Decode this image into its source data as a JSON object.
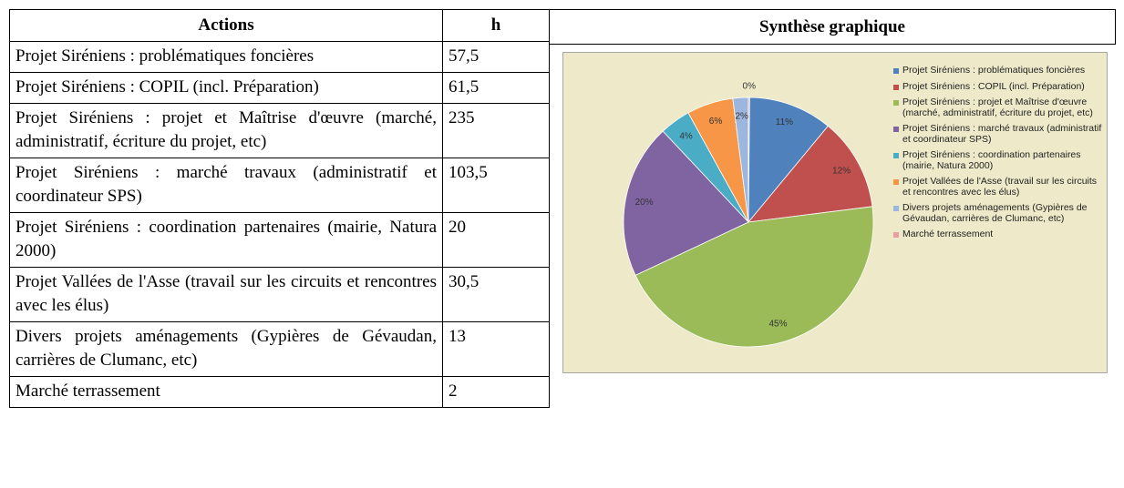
{
  "header": {
    "columns": [
      "Actions",
      "h",
      "Synthèse graphique"
    ]
  },
  "table": {
    "rows": [
      [
        "Projet Siréniens : problématiques foncières",
        "57,5"
      ],
      [
        "Projet Siréniens : COPIL (incl. Préparation)",
        "61,5"
      ],
      [
        "Projet Siréniens : projet et Maîtrise d'œuvre (marché, administratif, écriture du projet, etc)",
        "235"
      ],
      [
        "Projet Siréniens : marché travaux (administratif et coordinateur SPS)",
        "103,5"
      ],
      [
        "Projet Siréniens : coordination partenaires (mairie, Natura 2000)",
        "20"
      ],
      [
        "Projet Vallées de l'Asse (travail sur les circuits et rencontres avec les élus)",
        "30,5"
      ],
      [
        "Divers projets aménagements (Gypières de Gévaudan, carrières de Clumanc, etc)",
        "13"
      ],
      [
        "Marché terrassement",
        "2"
      ]
    ]
  },
  "chart_data": {
    "type": "pie",
    "categories": [
      "Projet Siréniens : problématiques foncières",
      "Projet Siréniens : COPIL (incl. Préparation)",
      "Projet Siréniens : projet et Maîtrise d'œuvre (marché, administratif, écriture du projet, etc)",
      "Projet Siréniens : marché travaux (administratif et coordinateur SPS)",
      "Projet Siréniens : coordination partenaires (mairie, Natura 2000)",
      "Projet Vallées de l'Asse (travail sur les circuits et rencontres avec les élus)",
      "Divers projets aménagements (Gypières de Gévaudan, carrières de Clumanc, etc)",
      "Marché terrassement"
    ],
    "values": [
      11,
      12,
      45,
      20,
      4,
      6,
      2,
      0
    ],
    "value_labels": [
      "11%",
      "12%",
      "45%",
      "20%",
      "4%",
      "6%",
      "2%",
      "0%"
    ],
    "colors": [
      "#4f81bd",
      "#c0504d",
      "#9bbb59",
      "#8064a2",
      "#4bacc6",
      "#f79646",
      "#9db6dd",
      "#e6a0a0"
    ],
    "legend": "right"
  }
}
